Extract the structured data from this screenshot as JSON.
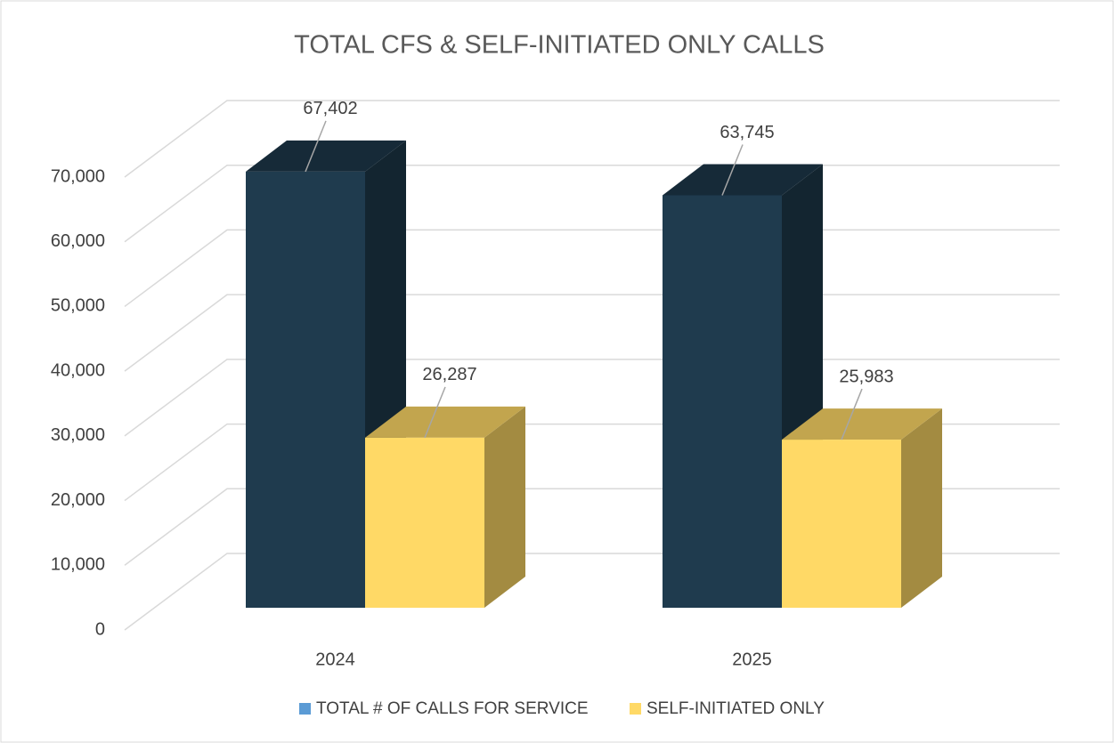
{
  "chart_data": {
    "type": "bar3d",
    "title": "TOTAL CFS & SELF-INITIATED ONLY CALLS",
    "categories": [
      "2024",
      "2025"
    ],
    "series": [
      {
        "name": "TOTAL # OF CALLS FOR SERVICE",
        "color": "#1f3b4e",
        "legend_color": "#5b9bd5",
        "values": [
          67402,
          63745
        ],
        "value_labels": [
          "67,402",
          "63,745"
        ]
      },
      {
        "name": "SELF-INITIATED ONLY",
        "color": "#ffd966",
        "legend_color": "#ffd966",
        "values": [
          26287,
          25983
        ],
        "value_labels": [
          "26,287",
          "25,983"
        ]
      }
    ],
    "ylim": [
      0,
      70000
    ],
    "yticks": [
      0,
      {
        "value": 10000,
        "label": "10,000"
      },
      {
        "value": 20000,
        "label": "20,000"
      },
      {
        "value": 30000,
        "label": "30,000"
      },
      {
        "value": 40000,
        "label": "40,000"
      },
      {
        "value": 50000,
        "label": "50,000"
      },
      {
        "value": 60000,
        "label": "60,000"
      },
      {
        "value": 70000,
        "label": "70,000"
      }
    ],
    "grid": true
  }
}
